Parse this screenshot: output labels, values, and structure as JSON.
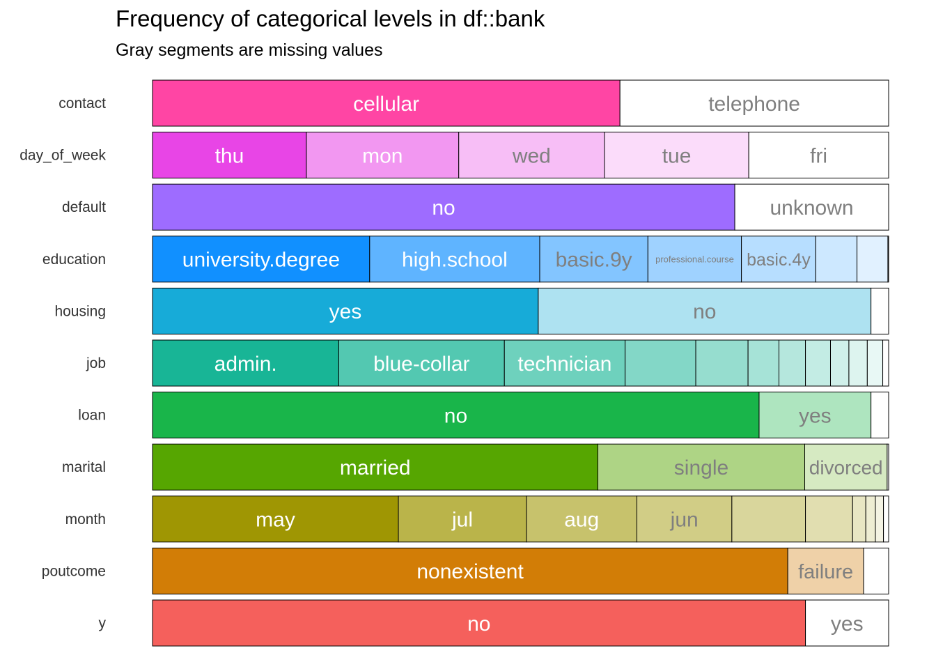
{
  "chart_data": {
    "type": "bar",
    "orientation": "horizontal",
    "stacking": "proportional",
    "title": "Frequency of categorical levels in df::bank",
    "subtitle": "Gray segments are missing values",
    "xlim": [
      0,
      1
    ],
    "grid": false,
    "legend": "none",
    "missing_color": "#bebebe",
    "rows": [
      {
        "variable": "contact",
        "color": "#ff45a4",
        "segments": [
          {
            "label": "cellular",
            "value": 0.635
          },
          {
            "label": "telephone",
            "value": 0.365
          }
        ]
      },
      {
        "variable": "day_of_week",
        "color": "#e845e6",
        "segments": [
          {
            "label": "thu",
            "value": 0.209
          },
          {
            "label": "mon",
            "value": 0.207
          },
          {
            "label": "wed",
            "value": 0.198
          },
          {
            "label": "tue",
            "value": 0.196
          },
          {
            "label": "fri",
            "value": 0.19
          }
        ]
      },
      {
        "variable": "default",
        "color": "#9e6cff",
        "segments": [
          {
            "label": "no",
            "value": 0.791
          },
          {
            "label": "unknown",
            "value": 0.209
          }
        ]
      },
      {
        "variable": "education",
        "color": "#1190ff",
        "segments": [
          {
            "label": "university.degree",
            "value": 0.295
          },
          {
            "label": "high.school",
            "value": 0.231
          },
          {
            "label": "basic.9y",
            "value": 0.147
          },
          {
            "label": "professional.course",
            "value": 0.127
          },
          {
            "label": "basic.4y",
            "value": 0.101
          },
          {
            "label": "",
            "value": 0.056
          },
          {
            "label": "",
            "value": 0.042
          },
          {
            "label": "",
            "value": 0.001
          }
        ]
      },
      {
        "variable": "housing",
        "color": "#17abd8",
        "segments": [
          {
            "label": "yes",
            "value": 0.524
          },
          {
            "label": "no",
            "value": 0.452
          },
          {
            "label": "",
            "value": 0.024
          }
        ]
      },
      {
        "variable": "job",
        "color": "#18b596",
        "segments": [
          {
            "label": "admin.",
            "value": 0.253
          },
          {
            "label": "blue-collar",
            "value": 0.225
          },
          {
            "label": "technician",
            "value": 0.164
          },
          {
            "label": "",
            "value": 0.096
          },
          {
            "label": "",
            "value": 0.071
          },
          {
            "label": "",
            "value": 0.042
          },
          {
            "label": "",
            "value": 0.036
          },
          {
            "label": "",
            "value": 0.034
          },
          {
            "label": "",
            "value": 0.025
          },
          {
            "label": "",
            "value": 0.025
          },
          {
            "label": "",
            "value": 0.021
          },
          {
            "label": "",
            "value": 0.008
          }
        ]
      },
      {
        "variable": "loan",
        "color": "#19b54a",
        "segments": [
          {
            "label": "no",
            "value": 0.824
          },
          {
            "label": "yes",
            "value": 0.152
          },
          {
            "label": "",
            "value": 0.024
          }
        ]
      },
      {
        "variable": "marital",
        "color": "#56a601",
        "segments": [
          {
            "label": "married",
            "value": 0.605
          },
          {
            "label": "single",
            "value": 0.281
          },
          {
            "label": "divorced",
            "value": 0.112
          },
          {
            "label": "",
            "value": 0.002
          }
        ]
      },
      {
        "variable": "month",
        "color": "#9f9603",
        "segments": [
          {
            "label": "may",
            "value": 0.334
          },
          {
            "label": "jul",
            "value": 0.174
          },
          {
            "label": "aug",
            "value": 0.15
          },
          {
            "label": "jun",
            "value": 0.129
          },
          {
            "label": "",
            "value": 0.1
          },
          {
            "label": "",
            "value": 0.064
          },
          {
            "label": "",
            "value": 0.018
          },
          {
            "label": "",
            "value": 0.013
          },
          {
            "label": "",
            "value": 0.011
          },
          {
            "label": "",
            "value": 0.007
          }
        ]
      },
      {
        "variable": "poutcome",
        "color": "#d27d06",
        "segments": [
          {
            "label": "nonexistent",
            "value": 0.863
          },
          {
            "label": "failure",
            "value": 0.103
          },
          {
            "label": "",
            "value": 0.034
          }
        ]
      },
      {
        "variable": "y",
        "color": "#f5605c",
        "segments": [
          {
            "label": "no",
            "value": 0.887
          },
          {
            "label": "yes",
            "value": 0.113
          }
        ]
      }
    ]
  }
}
